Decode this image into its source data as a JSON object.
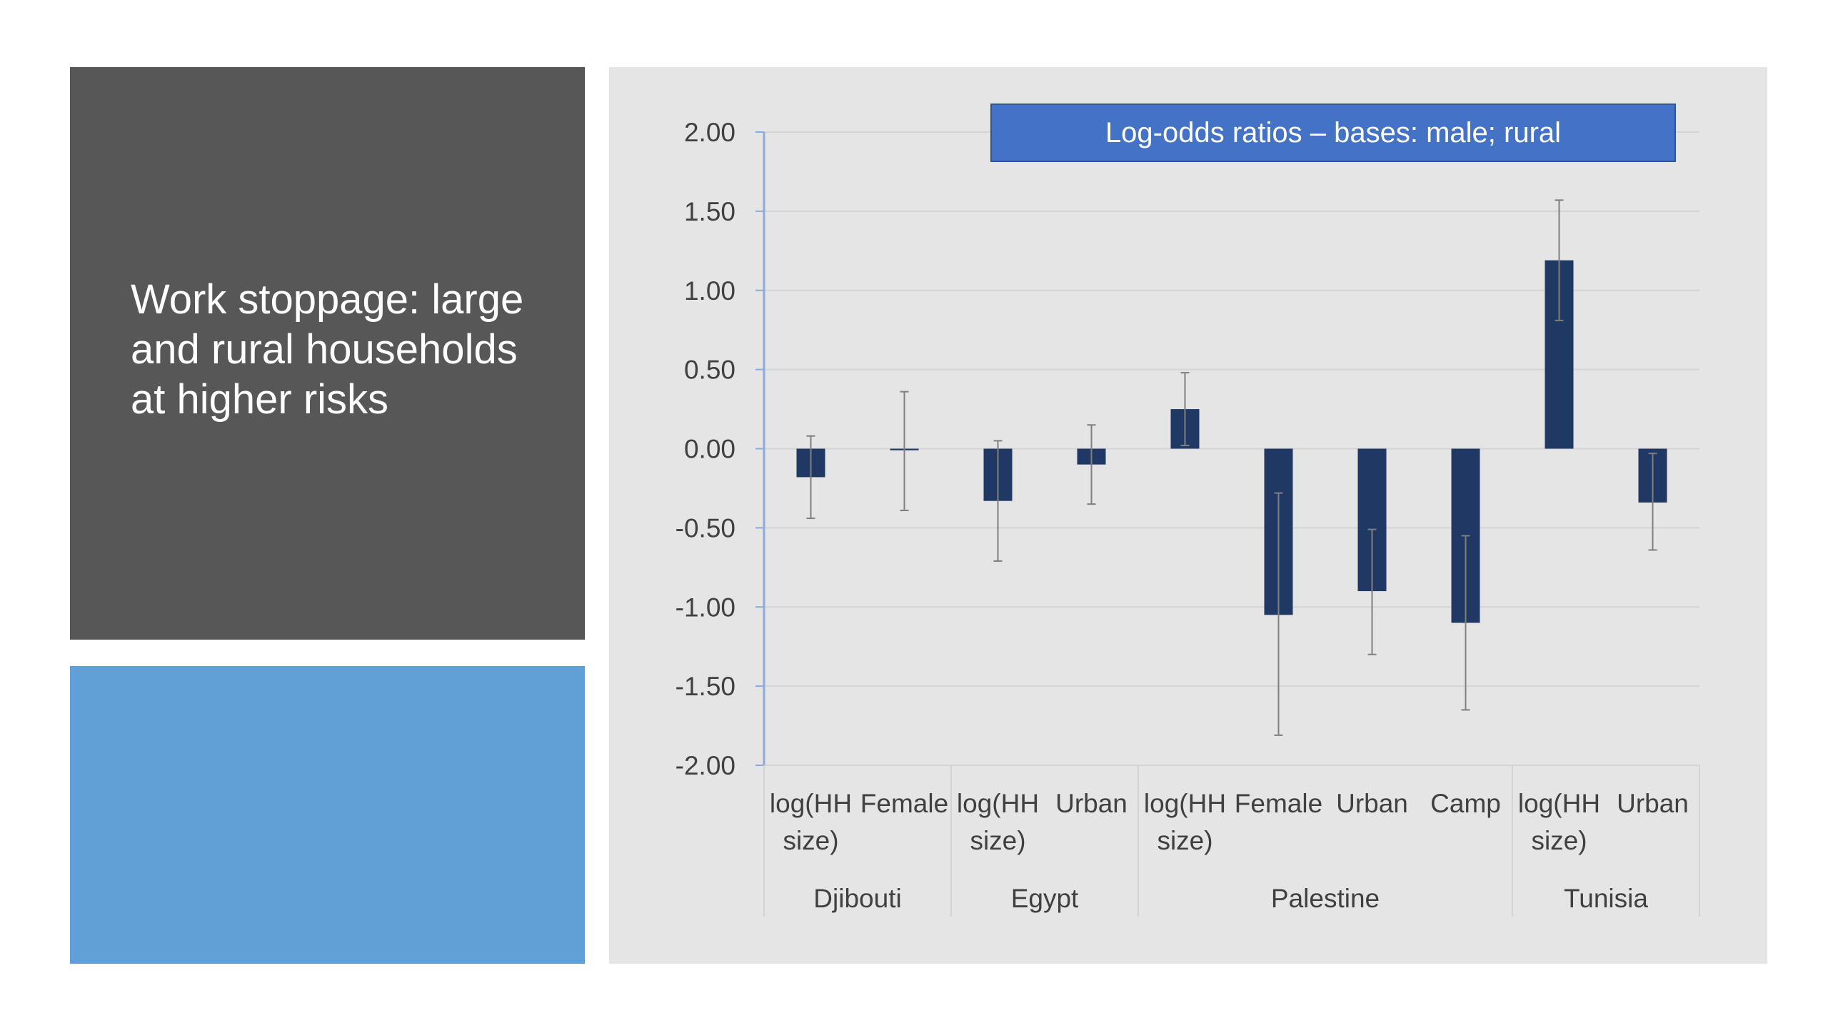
{
  "slide": {
    "title_lines": [
      "Work stoppage: large",
      "and rural households",
      "at higher risks"
    ]
  },
  "colors": {
    "dark_panel": "#575757",
    "blue_panel": "#61a0d6",
    "chart_bg": "#e5e5e5",
    "bar": "#1f3864",
    "legend_bg": "#4472c4",
    "axis": "#8eaadb"
  },
  "chart_data": {
    "type": "bar",
    "title": "Log-odds ratios – bases: male; rural",
    "ylim": [
      -2.0,
      2.0
    ],
    "yticks": [
      "2.00",
      "1.50",
      "1.00",
      "0.50",
      "0.00",
      "-0.50",
      "-1.00",
      "-1.50",
      "-2.00"
    ],
    "ytick_values": [
      2.0,
      1.5,
      1.0,
      0.5,
      0.0,
      -0.5,
      -1.0,
      -1.5,
      -2.0
    ],
    "grid": true,
    "legend": "top-right",
    "groups": [
      {
        "name": "Djibouti",
        "count": 2
      },
      {
        "name": "Egypt",
        "count": 2
      },
      {
        "name": "Palestine",
        "count": 4
      },
      {
        "name": "Tunisia",
        "count": 2
      }
    ],
    "categories": [
      {
        "lines": [
          "log(HH",
          "size)"
        ]
      },
      {
        "lines": [
          "Female"
        ]
      },
      {
        "lines": [
          "log(HH",
          "size)"
        ]
      },
      {
        "lines": [
          "Urban"
        ]
      },
      {
        "lines": [
          "log(HH",
          "size)"
        ]
      },
      {
        "lines": [
          "Female"
        ]
      },
      {
        "lines": [
          "Urban"
        ]
      },
      {
        "lines": [
          "Camp"
        ]
      },
      {
        "lines": [
          "log(HH",
          "size)"
        ]
      },
      {
        "lines": [
          "Urban"
        ]
      }
    ],
    "values": [
      -0.18,
      -0.01,
      -0.33,
      -0.1,
      0.25,
      -1.05,
      -0.9,
      -1.1,
      1.19,
      -0.34
    ],
    "error_low": [
      -0.44,
      -0.39,
      -0.71,
      -0.35,
      0.02,
      -1.81,
      -1.3,
      -1.65,
      0.81,
      -0.64
    ],
    "error_high": [
      0.08,
      0.36,
      0.05,
      0.15,
      0.48,
      -0.28,
      -0.51,
      -0.55,
      1.57,
      -0.03
    ]
  }
}
